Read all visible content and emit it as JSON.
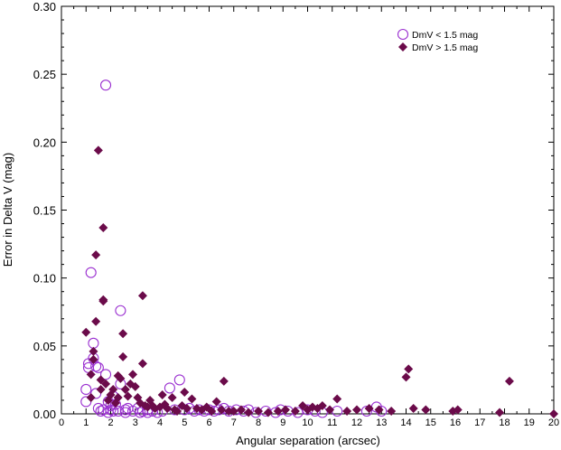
{
  "chart_data": {
    "type": "scatter",
    "xlabel": "Angular separation (arcsec)",
    "ylabel": "Error in Delta V  (mag)",
    "xlim": [
      0,
      20
    ],
    "ylim": [
      0,
      0.3
    ],
    "x_ticks": [
      "0",
      "1",
      "2",
      "3",
      "4",
      "5",
      "6",
      "7",
      "8",
      "9",
      "10",
      "11",
      "12",
      "13",
      "14",
      "15",
      "16",
      "17",
      "18",
      "19",
      "20"
    ],
    "y_ticks": [
      "0.00",
      "0.05",
      "0.10",
      "0.15",
      "0.20",
      "0.25",
      "0.30"
    ],
    "legend_position": "top-right",
    "series": [
      {
        "name": "DmV < 1.5 mag",
        "marker": "open-circle",
        "color": "#9a2fd0",
        "points": [
          [
            1.0,
            0.009
          ],
          [
            1.0,
            0.018
          ],
          [
            1.1,
            0.034
          ],
          [
            1.1,
            0.037
          ],
          [
            1.2,
            0.104
          ],
          [
            1.3,
            0.052
          ],
          [
            1.3,
            0.041
          ],
          [
            1.4,
            0.035
          ],
          [
            1.4,
            0.015
          ],
          [
            1.5,
            0.034
          ],
          [
            1.5,
            0.004
          ],
          [
            1.6,
            0.002
          ],
          [
            1.7,
            0.003
          ],
          [
            1.8,
            0.029
          ],
          [
            1.8,
            0.242
          ],
          [
            1.9,
            0.001
          ],
          [
            1.9,
            0.009
          ],
          [
            2.0,
            0.006
          ],
          [
            2.0,
            0.003
          ],
          [
            2.1,
            0.002
          ],
          [
            2.1,
            0.013
          ],
          [
            2.2,
            0.007
          ],
          [
            2.3,
            0.002
          ],
          [
            2.4,
            0.076
          ],
          [
            2.4,
            0.022
          ],
          [
            2.6,
            0.001
          ],
          [
            2.6,
            0.003
          ],
          [
            2.7,
            0.004
          ],
          [
            2.9,
            0.002
          ],
          [
            3.1,
            0.004
          ],
          [
            3.2,
            0.001
          ],
          [
            3.3,
            0.002
          ],
          [
            3.5,
            0.001
          ],
          [
            3.5,
            0.003
          ],
          [
            3.7,
            0.002
          ],
          [
            3.9,
            0.001
          ],
          [
            4.1,
            0.002
          ],
          [
            4.4,
            0.019
          ],
          [
            4.6,
            0.003
          ],
          [
            4.8,
            0.025
          ],
          [
            5.0,
            0.003
          ],
          [
            5.2,
            0.004
          ],
          [
            5.4,
            0.002
          ],
          [
            5.6,
            0.003
          ],
          [
            5.8,
            0.002
          ],
          [
            6.0,
            0.003
          ],
          [
            6.2,
            0.002
          ],
          [
            6.4,
            0.003
          ],
          [
            6.6,
            0.004
          ],
          [
            6.8,
            0.002
          ],
          [
            7.1,
            0.003
          ],
          [
            7.4,
            0.002
          ],
          [
            7.6,
            0.003
          ],
          [
            7.9,
            0.001
          ],
          [
            8.3,
            0.002
          ],
          [
            8.7,
            0.001
          ],
          [
            8.9,
            0.003
          ],
          [
            9.2,
            0.002
          ],
          [
            9.6,
            0.001
          ],
          [
            10.0,
            0.003
          ],
          [
            10.3,
            0.002
          ],
          [
            10.6,
            0.001
          ],
          [
            11.2,
            0.002
          ],
          [
            12.4,
            0.002
          ],
          [
            12.8,
            0.005
          ],
          [
            13.0,
            0.002
          ]
        ]
      },
      {
        "name": "DmV > 1.5 mag",
        "marker": "filled-diamond",
        "color": "#6b0b4a",
        "points": [
          [
            1.0,
            0.06
          ],
          [
            1.2,
            0.029
          ],
          [
            1.2,
            0.012
          ],
          [
            1.3,
            0.046
          ],
          [
            1.3,
            0.04
          ],
          [
            1.4,
            0.117
          ],
          [
            1.4,
            0.068
          ],
          [
            1.5,
            0.194
          ],
          [
            1.6,
            0.018
          ],
          [
            1.6,
            0.025
          ],
          [
            1.7,
            0.084
          ],
          [
            1.7,
            0.083
          ],
          [
            1.7,
            0.137
          ],
          [
            1.8,
            0.022
          ],
          [
            1.9,
            0.01
          ],
          [
            2.0,
            0.014
          ],
          [
            2.1,
            0.018
          ],
          [
            2.2,
            0.008
          ],
          [
            2.3,
            0.028
          ],
          [
            2.3,
            0.012
          ],
          [
            2.4,
            0.026
          ],
          [
            2.5,
            0.042
          ],
          [
            2.5,
            0.059
          ],
          [
            2.6,
            0.018
          ],
          [
            2.7,
            0.013
          ],
          [
            2.8,
            0.022
          ],
          [
            2.9,
            0.029
          ],
          [
            3.0,
            0.02
          ],
          [
            3.1,
            0.012
          ],
          [
            3.2,
            0.008
          ],
          [
            3.3,
            0.087
          ],
          [
            3.3,
            0.037
          ],
          [
            3.4,
            0.006
          ],
          [
            3.5,
            0.005
          ],
          [
            3.6,
            0.01
          ],
          [
            3.7,
            0.006
          ],
          [
            3.8,
            0.004
          ],
          [
            4.0,
            0.005
          ],
          [
            4.1,
            0.014
          ],
          [
            4.2,
            0.007
          ],
          [
            4.3,
            0.004
          ],
          [
            4.5,
            0.012
          ],
          [
            4.6,
            0.003
          ],
          [
            4.7,
            0.002
          ],
          [
            4.9,
            0.006
          ],
          [
            5.0,
            0.016
          ],
          [
            5.1,
            0.004
          ],
          [
            5.3,
            0.011
          ],
          [
            5.5,
            0.004
          ],
          [
            5.7,
            0.003
          ],
          [
            5.9,
            0.005
          ],
          [
            6.1,
            0.002
          ],
          [
            6.3,
            0.009
          ],
          [
            6.5,
            0.003
          ],
          [
            6.6,
            0.024
          ],
          [
            6.8,
            0.002
          ],
          [
            7.0,
            0.002
          ],
          [
            7.3,
            0.003
          ],
          [
            7.6,
            0.001
          ],
          [
            8.0,
            0.002
          ],
          [
            8.4,
            0.001
          ],
          [
            8.8,
            0.002
          ],
          [
            9.1,
            0.003
          ],
          [
            9.5,
            0.002
          ],
          [
            9.8,
            0.006
          ],
          [
            10.0,
            0.003
          ],
          [
            10.2,
            0.005
          ],
          [
            10.4,
            0.004
          ],
          [
            10.6,
            0.006
          ],
          [
            10.9,
            0.003
          ],
          [
            11.2,
            0.011
          ],
          [
            11.6,
            0.002
          ],
          [
            12.0,
            0.003
          ],
          [
            12.5,
            0.004
          ],
          [
            12.9,
            0.003
          ],
          [
            13.4,
            0.002
          ],
          [
            14.0,
            0.027
          ],
          [
            14.1,
            0.033
          ],
          [
            14.3,
            0.004
          ],
          [
            14.8,
            0.003
          ],
          [
            15.9,
            0.002
          ],
          [
            16.1,
            0.003
          ],
          [
            17.8,
            0.001
          ],
          [
            18.2,
            0.024
          ],
          [
            20.0,
            0.0
          ]
        ]
      }
    ]
  }
}
